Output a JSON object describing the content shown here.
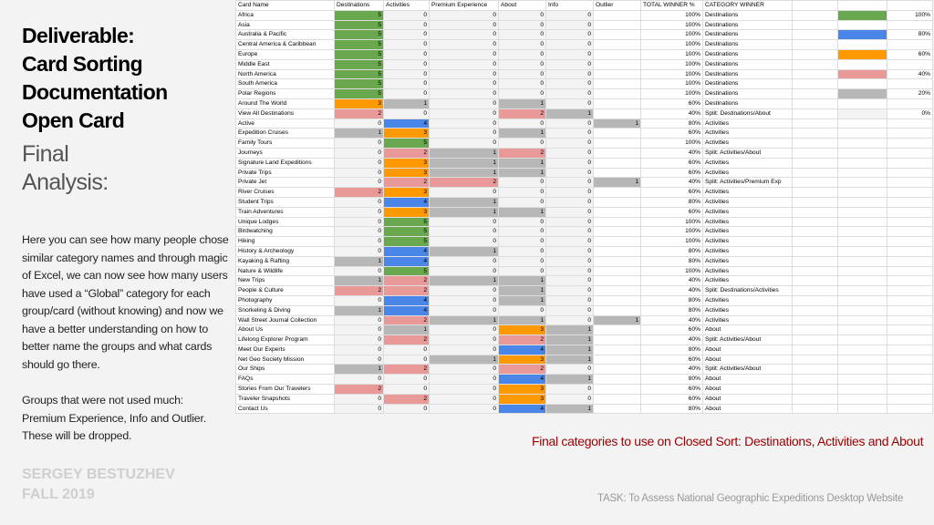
{
  "left": {
    "title": [
      "Deliverable:",
      "Card Sorting",
      "Documentation",
      "Open Card"
    ],
    "subtitle": [
      "Final",
      "Analysis:"
    ],
    "paragraphs": [
      "Here you can see how many people chose similar category names and through magic of Excel, we can now see how many users have used a “Global” category for each group/card (without knowing) and now we have a better understanding on how to better name the groups and what cards should go there.",
      "Groups that were not used much: Premium Experience, Info and Outlier. These will be dropped."
    ],
    "author": [
      "SERGEY BESTUZHEV",
      "FALL 2019"
    ]
  },
  "table": {
    "header": [
      "Card Name",
      "Destinations",
      "Activities",
      "Premium Experience",
      "About",
      "Info",
      "Outlier",
      "TOTAL WINNER %",
      "CATEGORY WINNER"
    ],
    "rows": [
      [
        "Africa",
        5,
        0,
        0,
        0,
        0,
        null,
        "100%",
        "Destinations"
      ],
      [
        "Asia",
        5,
        0,
        0,
        0,
        0,
        null,
        "100%",
        "Destinations"
      ],
      [
        "Australia & Pacific",
        5,
        0,
        0,
        0,
        0,
        null,
        "100%",
        "Destinations"
      ],
      [
        "Central America & Caribbean",
        5,
        0,
        0,
        0,
        0,
        null,
        "100%",
        "Destinations"
      ],
      [
        "Europe",
        5,
        0,
        0,
        0,
        0,
        null,
        "100%",
        "Destinations"
      ],
      [
        "Middle East",
        5,
        0,
        0,
        0,
        0,
        null,
        "100%",
        "Destinations"
      ],
      [
        "North America",
        5,
        0,
        0,
        0,
        0,
        null,
        "100%",
        "Destinations"
      ],
      [
        "South America",
        5,
        0,
        0,
        0,
        0,
        null,
        "100%",
        "Destinations"
      ],
      [
        "Polar Regions",
        5,
        0,
        0,
        0,
        0,
        null,
        "100%",
        "Destinations"
      ],
      [
        "Around The World",
        3,
        1,
        0,
        1,
        0,
        null,
        "60%",
        "Destinations"
      ],
      [
        "View All Destinations",
        2,
        0,
        0,
        2,
        1,
        null,
        "40%",
        "Split: Destinations/About"
      ],
      [
        "Active",
        0,
        4,
        0,
        0,
        0,
        1,
        "80%",
        "Activities"
      ],
      [
        "Expedition Cruises",
        1,
        3,
        0,
        1,
        0,
        null,
        "60%",
        "Activities"
      ],
      [
        "Family Tours",
        0,
        5,
        0,
        0,
        0,
        null,
        "100%",
        "Activities"
      ],
      [
        "Journeys",
        0,
        2,
        1,
        2,
        0,
        null,
        "40%",
        "Split: Activities/About"
      ],
      [
        "Signature Land Expeditions",
        0,
        3,
        1,
        1,
        0,
        null,
        "60%",
        "Activities"
      ],
      [
        "Private Trips",
        0,
        3,
        1,
        1,
        0,
        null,
        "60%",
        "Activities"
      ],
      [
        "Private Jet",
        0,
        2,
        2,
        0,
        0,
        1,
        "40%",
        "Split: Activities/Premium Exp"
      ],
      [
        "River Cruises",
        2,
        3,
        0,
        0,
        0,
        null,
        "60%",
        "Activities"
      ],
      [
        "Student Trips",
        0,
        4,
        1,
        0,
        0,
        null,
        "80%",
        "Activities"
      ],
      [
        "Train Adventures",
        0,
        3,
        1,
        1,
        0,
        null,
        "60%",
        "Activities"
      ],
      [
        "Unique Lodges",
        0,
        5,
        0,
        0,
        0,
        null,
        "100%",
        "Activities"
      ],
      [
        "Birdwatching",
        0,
        5,
        0,
        0,
        0,
        null,
        "100%",
        "Activities"
      ],
      [
        "Hiking",
        0,
        5,
        0,
        0,
        0,
        null,
        "100%",
        "Activities"
      ],
      [
        "History & Archeology",
        0,
        4,
        1,
        0,
        0,
        null,
        "80%",
        "Activities"
      ],
      [
        "Kayaking & Rafting",
        1,
        4,
        0,
        0,
        0,
        null,
        "80%",
        "Activities"
      ],
      [
        "Nature & Wildlife",
        0,
        5,
        0,
        0,
        0,
        null,
        "100%",
        "Activities"
      ],
      [
        "New Trips",
        1,
        2,
        1,
        1,
        0,
        null,
        "40%",
        "Activities"
      ],
      [
        "People & Culture",
        2,
        2,
        0,
        1,
        0,
        null,
        "40%",
        "Split: Destinations/Activities"
      ],
      [
        "Photography",
        0,
        4,
        0,
        1,
        0,
        null,
        "80%",
        "Activities"
      ],
      [
        "Snorkeling & Diving",
        1,
        4,
        0,
        0,
        0,
        null,
        "80%",
        "Activities"
      ],
      [
        "Wall Street Journal Collection",
        0,
        2,
        1,
        1,
        0,
        1,
        "40%",
        "Activities"
      ],
      [
        "About Us",
        0,
        1,
        0,
        3,
        1,
        null,
        "60%",
        "About"
      ],
      [
        "Lifelong Explorer Program",
        0,
        2,
        0,
        2,
        1,
        null,
        "40%",
        "Split: Activities/About"
      ],
      [
        "Meet Our Experts",
        0,
        0,
        0,
        4,
        1,
        null,
        "80%",
        "About"
      ],
      [
        "Net Geo Society Mission",
        0,
        0,
        1,
        3,
        1,
        null,
        "60%",
        "About"
      ],
      [
        "Our Ships",
        1,
        2,
        0,
        2,
        0,
        null,
        "40%",
        "Split: Activities/About"
      ],
      [
        "FAQs",
        0,
        0,
        0,
        4,
        1,
        null,
        "80%",
        "About"
      ],
      [
        "Stories From Our Travelers",
        2,
        0,
        0,
        3,
        0,
        null,
        "60%",
        "About"
      ],
      [
        "Traveler Snapshots",
        0,
        2,
        0,
        3,
        0,
        null,
        "60%",
        "About"
      ],
      [
        "Contact Us",
        0,
        0,
        0,
        4,
        1,
        null,
        "80%",
        "About"
      ]
    ],
    "legend": [
      {
        "color": "#6aa84f",
        "label": "100%"
      },
      {
        "color": "#4a86e8",
        "label": "80%"
      },
      {
        "color": "#ff9900",
        "label": "60%"
      },
      {
        "color": "#ea9999",
        "label": "40%"
      },
      {
        "color": "#b7b7b7",
        "label": "20%"
      },
      {
        "color": "#f3f3f3",
        "label": "0%"
      }
    ]
  },
  "conclusion": "Final categories to use on Closed Sort: Destinations, Activities and About",
  "task": "TASK: To Assess National Geographic Expeditions Desktop Website"
}
